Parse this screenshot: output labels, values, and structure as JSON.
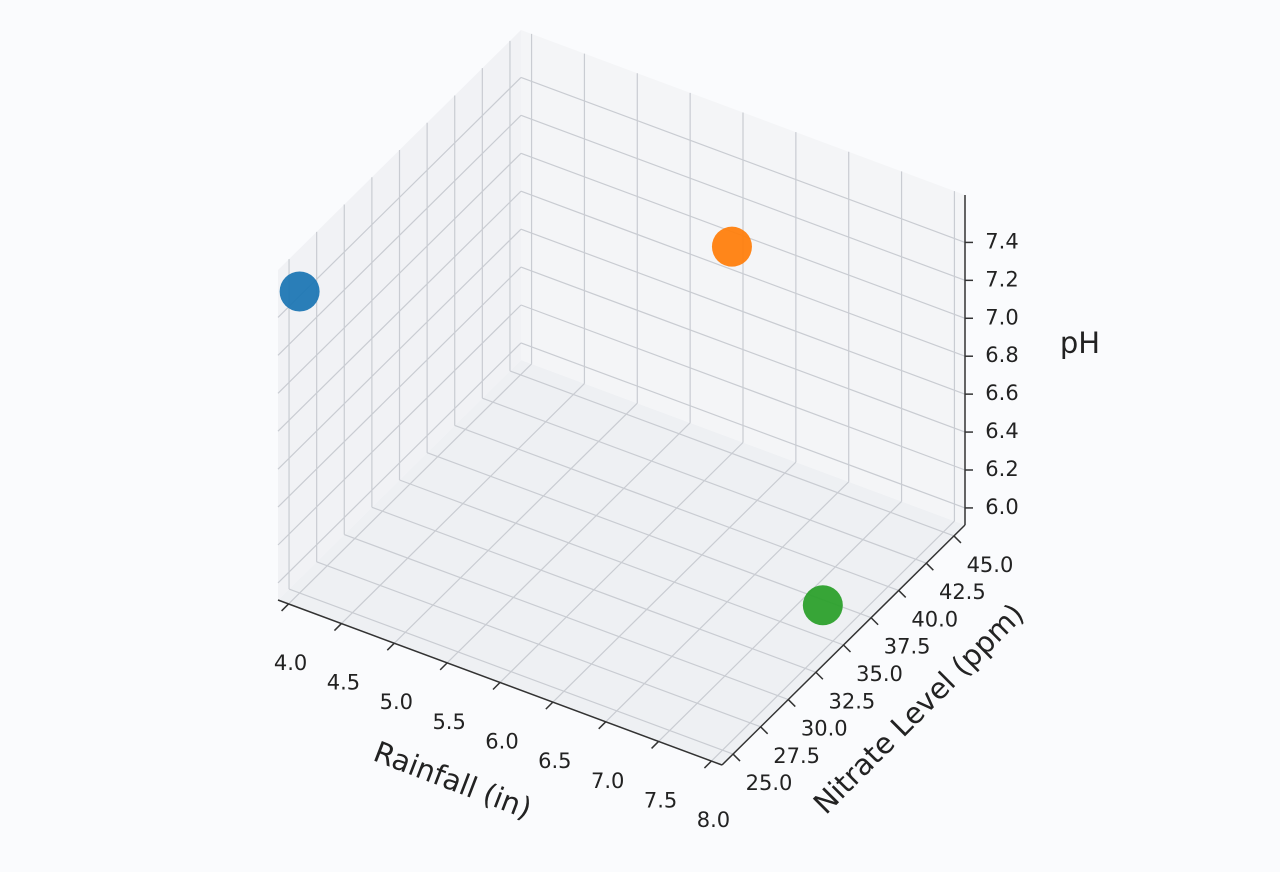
{
  "chart_data": {
    "type": "scatter3d",
    "xlabel": "Rainfall (in)",
    "ylabel": "Nitrate Level (ppm)",
    "zlabel": "pH",
    "x": [
      4.0,
      6.0,
      7.8
    ],
    "y": [
      25,
      45,
      36
    ],
    "z": [
      7.5,
      7.0,
      6.0
    ],
    "colors": [
      "#1f77b4",
      "#ff7f0e",
      "#2ca02c"
    ],
    "xlim": [
      3.9,
      8.1
    ],
    "ylim": [
      24,
      46
    ],
    "zlim": [
      5.91,
      7.65
    ],
    "xticks": [
      {
        "value": 4.0,
        "label": "4.0"
      },
      {
        "value": 4.5,
        "label": "4.5"
      },
      {
        "value": 5.0,
        "label": "5.0"
      },
      {
        "value": 5.5,
        "label": "5.5"
      },
      {
        "value": 6.0,
        "label": "6.0"
      },
      {
        "value": 6.5,
        "label": "6.5"
      },
      {
        "value": 7.0,
        "label": "7.0"
      },
      {
        "value": 7.5,
        "label": "7.5"
      },
      {
        "value": 8.0,
        "label": "8.0"
      }
    ],
    "yticks": [
      {
        "value": 25,
        "label": "25.0"
      },
      {
        "value": 27.5,
        "label": "27.5"
      },
      {
        "value": 30,
        "label": "30.0"
      },
      {
        "value": 32.5,
        "label": "32.5"
      },
      {
        "value": 35,
        "label": "35.0"
      },
      {
        "value": 37.5,
        "label": "37.5"
      },
      {
        "value": 40,
        "label": "40.0"
      },
      {
        "value": 42.5,
        "label": "42.5"
      },
      {
        "value": 45,
        "label": "45.0"
      }
    ],
    "zticks": [
      {
        "value": 6.0,
        "label": "6.0"
      },
      {
        "value": 6.2,
        "label": "6.2"
      },
      {
        "value": 6.4,
        "label": "6.4"
      },
      {
        "value": 6.6,
        "label": "6.6"
      },
      {
        "value": 6.8,
        "label": "6.8"
      },
      {
        "value": 7.0,
        "label": "7.0"
      },
      {
        "value": 7.2,
        "label": "7.2"
      },
      {
        "value": 7.4,
        "label": "7.4"
      }
    ],
    "grid": true
  }
}
